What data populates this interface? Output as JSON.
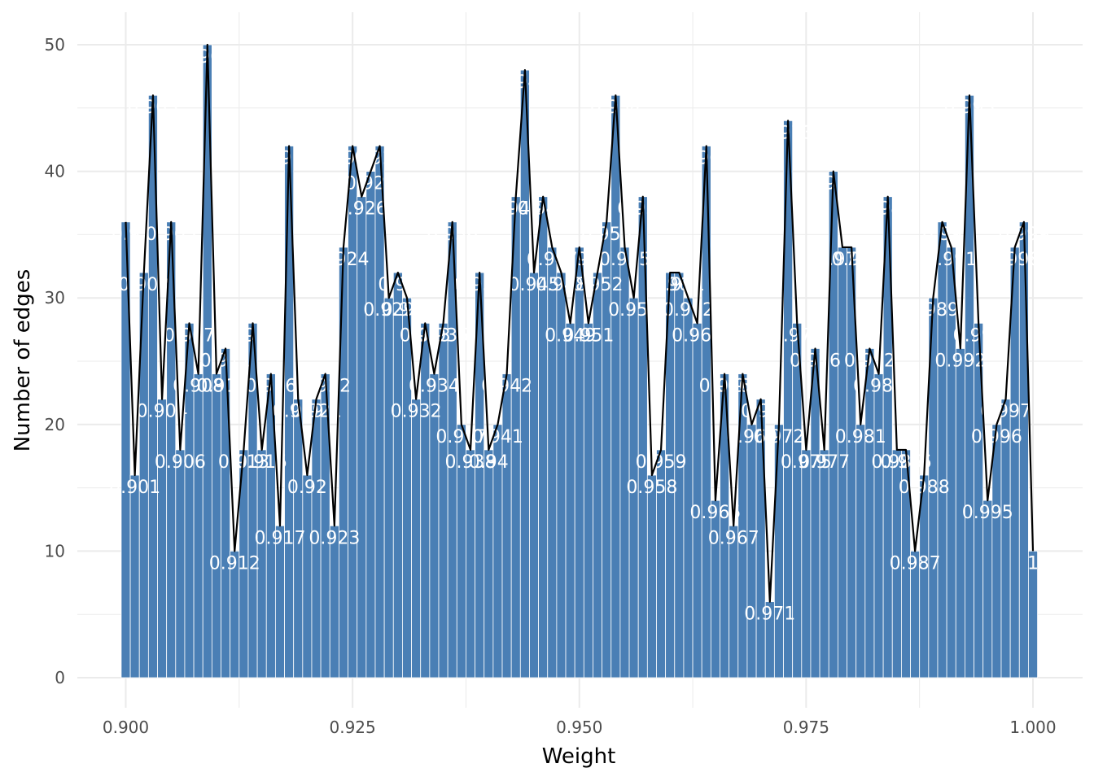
{
  "chart_data": {
    "type": "bar",
    "xlabel": "Weight",
    "ylabel": "Number of edges",
    "xlim": [
      0.898,
      1.002
    ],
    "ylim": [
      0,
      50
    ],
    "x_ticks": [
      "0.900",
      "0.925",
      "0.950",
      "0.975",
      "1.000"
    ],
    "y_ticks": [
      "0",
      "10",
      "20",
      "30",
      "40",
      "50"
    ],
    "grid": true,
    "legend": "none",
    "colors": {
      "bar": "#4a7fb5",
      "line": "#000000",
      "label": "#ffffff",
      "grid": "#ebebeb"
    },
    "x": [
      0.9,
      0.901,
      0.902,
      0.903,
      0.904,
      0.905,
      0.906,
      0.907,
      0.908,
      0.909,
      0.91,
      0.911,
      0.912,
      0.913,
      0.914,
      0.915,
      0.916,
      0.917,
      0.918,
      0.919,
      0.92,
      0.921,
      0.922,
      0.923,
      0.924,
      0.925,
      0.926,
      0.927,
      0.928,
      0.929,
      0.93,
      0.931,
      0.932,
      0.933,
      0.934,
      0.935,
      0.936,
      0.937,
      0.938,
      0.939,
      0.94,
      0.941,
      0.942,
      0.943,
      0.944,
      0.945,
      0.946,
      0.947,
      0.948,
      0.949,
      0.95,
      0.951,
      0.952,
      0.953,
      0.954,
      0.955,
      0.956,
      0.957,
      0.958,
      0.959,
      0.96,
      0.961,
      0.962,
      0.963,
      0.964,
      0.965,
      0.966,
      0.967,
      0.968,
      0.969,
      0.97,
      0.971,
      0.972,
      0.973,
      0.974,
      0.975,
      0.976,
      0.977,
      0.978,
      0.979,
      0.98,
      0.981,
      0.982,
      0.983,
      0.984,
      0.985,
      0.986,
      0.987,
      0.988,
      0.989,
      0.99,
      0.991,
      0.992,
      0.993,
      0.994,
      0.995,
      0.996,
      0.997,
      0.998,
      0.999,
      1.0
    ],
    "values": [
      36,
      16,
      32,
      46,
      22,
      36,
      18,
      28,
      24,
      50,
      24,
      26,
      10,
      18,
      28,
      18,
      24,
      12,
      42,
      22,
      16,
      22,
      24,
      12,
      34,
      42,
      38,
      40,
      42,
      30,
      32,
      30,
      22,
      28,
      24,
      28,
      36,
      20,
      18,
      32,
      18,
      20,
      24,
      38,
      48,
      32,
      38,
      34,
      32,
      28,
      34,
      28,
      32,
      36,
      46,
      34,
      30,
      38,
      16,
      18,
      32,
      32,
      30,
      28,
      42,
      14,
      24,
      12,
      24,
      20,
      22,
      6,
      20,
      44,
      28,
      18,
      26,
      18,
      40,
      34,
      34,
      20,
      26,
      24,
      38,
      18,
      18,
      10,
      16,
      30,
      36,
      34,
      26,
      46,
      28,
      14,
      20,
      22,
      34,
      36,
      10
    ],
    "labels": [
      "0.9",
      "0.901",
      "0.902",
      "0.903",
      "0.904",
      "0.905",
      "0.906",
      "0.907",
      "0.908",
      "0.909",
      "0.91",
      "0.911",
      "0.912",
      "0.913",
      "0.914",
      "0.915",
      "0.916",
      "0.917",
      "0.918",
      "0.919",
      "0.92",
      "0.921",
      "0.922",
      "0.923",
      "0.924",
      "0.925",
      "0.926",
      "0.927",
      "0.928",
      "0.929",
      "0.93",
      "0.931",
      "0.932",
      "0.933",
      "0.934",
      "0.935",
      "0.936",
      "0.937",
      "0.938",
      "0.939",
      "0.94",
      "0.941",
      "0.942",
      "0.943",
      "0.944",
      "0.945",
      "0.946",
      "0.947",
      "0.948",
      "0.949",
      "0.95",
      "0.951",
      "0.952",
      "0.953",
      "0.954",
      "0.955",
      "0.956",
      "0.957",
      "0.958",
      "0.959",
      "0.96",
      "0.961",
      "0.962",
      "0.963",
      "0.964",
      "0.965",
      "0.966",
      "0.967",
      "0.968",
      "0.969",
      "0.97",
      "0.971",
      "0.972",
      "0.973",
      "0.974",
      "0.975",
      "0.976",
      "0.977",
      "0.978",
      "0.979",
      "0.98",
      "0.981",
      "0.982",
      "0.983",
      "0.984",
      "0.985",
      "0.986",
      "0.987",
      "0.988",
      "0.989",
      "0.99",
      "0.991",
      "0.992",
      "0.993",
      "0.994",
      "0.995",
      "0.996",
      "0.997",
      "0.998",
      "0.999",
      "1"
    ]
  }
}
